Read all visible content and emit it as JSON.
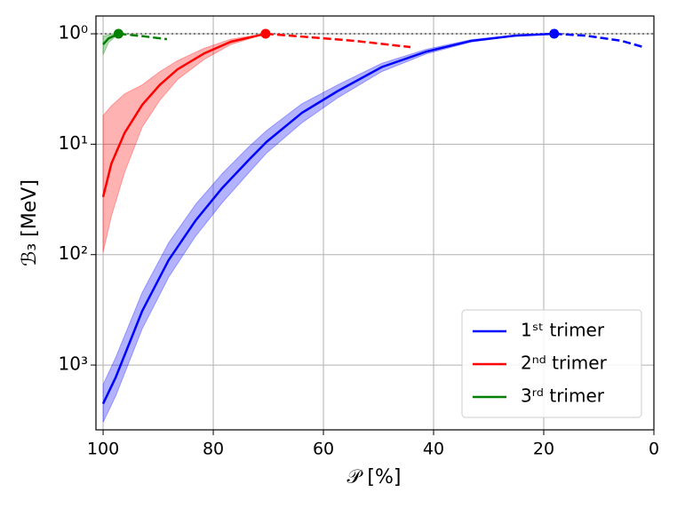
{
  "chart_data": {
    "type": "line",
    "xlabel": "𝒫 [%]",
    "ylabel": "ℬ₃ [MeV]",
    "xlim": [
      101.3,
      0
    ],
    "xticks": [
      100,
      80,
      60,
      40,
      20,
      0
    ],
    "ylim": [
      0.69,
      3860
    ],
    "y_reversed": true,
    "log_y": true,
    "yticks": [
      {
        "value": 1,
        "label": "10⁰"
      },
      {
        "value": 10,
        "label": "10¹"
      },
      {
        "value": 100,
        "label": "10²"
      },
      {
        "value": 1000,
        "label": "10³"
      }
    ],
    "grid": true,
    "hline": 1,
    "legend": "lower right",
    "series": [
      {
        "name": "1ˢᵗ trimer",
        "color": "#0000ff",
        "x": [
          100,
          97.7,
          92.9,
          88.1,
          83.2,
          78.4,
          73.5,
          70.3,
          63.9,
          57.4,
          49.4,
          41.3,
          33.2,
          25.2,
          18.1
        ],
        "values": [
          2239,
          1288,
          324,
          112,
          49,
          25,
          13.8,
          9.5,
          5.2,
          3.3,
          2.0,
          1.45,
          1.16,
          1.04,
          1.0
        ],
        "lower": [
          1500,
          850,
          220,
          78,
          35,
          18.5,
          10.5,
          7.5,
          4.3,
          2.9,
          1.85,
          1.38,
          1.13,
          1.03,
          1.0
        ],
        "upper": [
          3300,
          1900,
          470,
          160,
          68,
          34,
          18,
          12,
          6.4,
          3.8,
          2.2,
          1.52,
          1.19,
          1.05,
          1.0
        ],
        "extrapolation": {
          "x": [
            18.1,
            12.3,
            5.8,
            1.9
          ],
          "values": [
            1.0,
            1.04,
            1.16,
            1.32
          ]
        }
      },
      {
        "name": "2ⁿᵈ trimer",
        "color": "#ff0000",
        "x": [
          100,
          98.5,
          96.1,
          92.9,
          89.7,
          86.5,
          81.6,
          76.8,
          70.5
        ],
        "values": [
          30,
          15,
          7.9,
          4.4,
          2.9,
          2.1,
          1.5,
          1.18,
          1.0
        ],
        "lower": [
          5.5,
          4.5,
          3.5,
          2.9,
          2.2,
          1.75,
          1.35,
          1.12,
          1.0
        ],
        "upper": [
          95,
          45,
          18,
          7,
          4,
          2.6,
          1.7,
          1.25,
          1.0
        ],
        "extrapolation": {
          "x": [
            70.5,
            63.9,
            54.2,
            44.2
          ],
          "values": [
            1.0,
            1.06,
            1.16,
            1.32
          ]
        }
      },
      {
        "name": "3ʳᵈ trimer",
        "color": "#008000",
        "x": [
          100,
          99,
          97.2
        ],
        "values": [
          1.25,
          1.1,
          1.0
        ],
        "lower": [
          1.05,
          1.02,
          1.0
        ],
        "upper": [
          1.55,
          1.2,
          1.0
        ],
        "extrapolation": {
          "x": [
            97.2,
            92.9,
            88.4
          ],
          "values": [
            1.0,
            1.05,
            1.12
          ]
        }
      }
    ]
  }
}
